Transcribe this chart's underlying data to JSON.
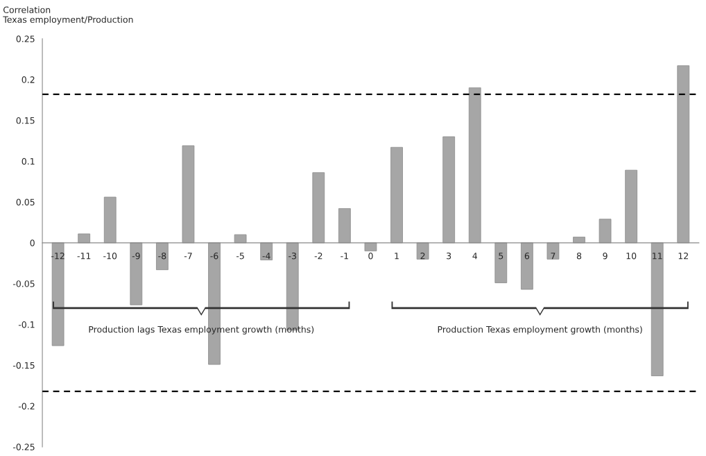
{
  "chart_data": {
    "type": "bar",
    "ylabel": "Correlation\nTexas employment/Production",
    "categories": [
      "-12",
      "-11",
      "-10",
      "-9",
      "-8",
      "-7",
      "-6",
      "-5",
      "-4",
      "-3",
      "-2",
      "-1",
      "0",
      "1",
      "2",
      "3",
      "4",
      "5",
      "6",
      "7",
      "8",
      "9",
      "10",
      "11",
      "12"
    ],
    "values": [
      -0.126,
      0.011,
      0.056,
      -0.076,
      -0.033,
      0.119,
      -0.149,
      0.01,
      -0.021,
      -0.107,
      0.086,
      0.042,
      -0.01,
      0.117,
      -0.02,
      0.13,
      0.19,
      -0.049,
      -0.057,
      -0.02,
      0.007,
      0.029,
      0.089,
      -0.163,
      0.217
    ],
    "color": "#a6a6a6",
    "ylim": [
      -0.25,
      0.25
    ],
    "yticks": [
      -0.25,
      -0.2,
      -0.15,
      -0.1,
      -0.05,
      0,
      0.05,
      0.1,
      0.15,
      0.2,
      0.25
    ],
    "ref_lines": [
      {
        "axis": "y",
        "value": 0.182,
        "color": "#000000",
        "line_style": "dashed"
      },
      {
        "axis": "y",
        "value": -0.182,
        "color": "#000000",
        "line_style": "dashed"
      }
    ],
    "annotations": [
      "Production lags Texas employment growth (months)",
      "Production Texas employment growth (months)"
    ],
    "grid": false,
    "legend": false
  }
}
